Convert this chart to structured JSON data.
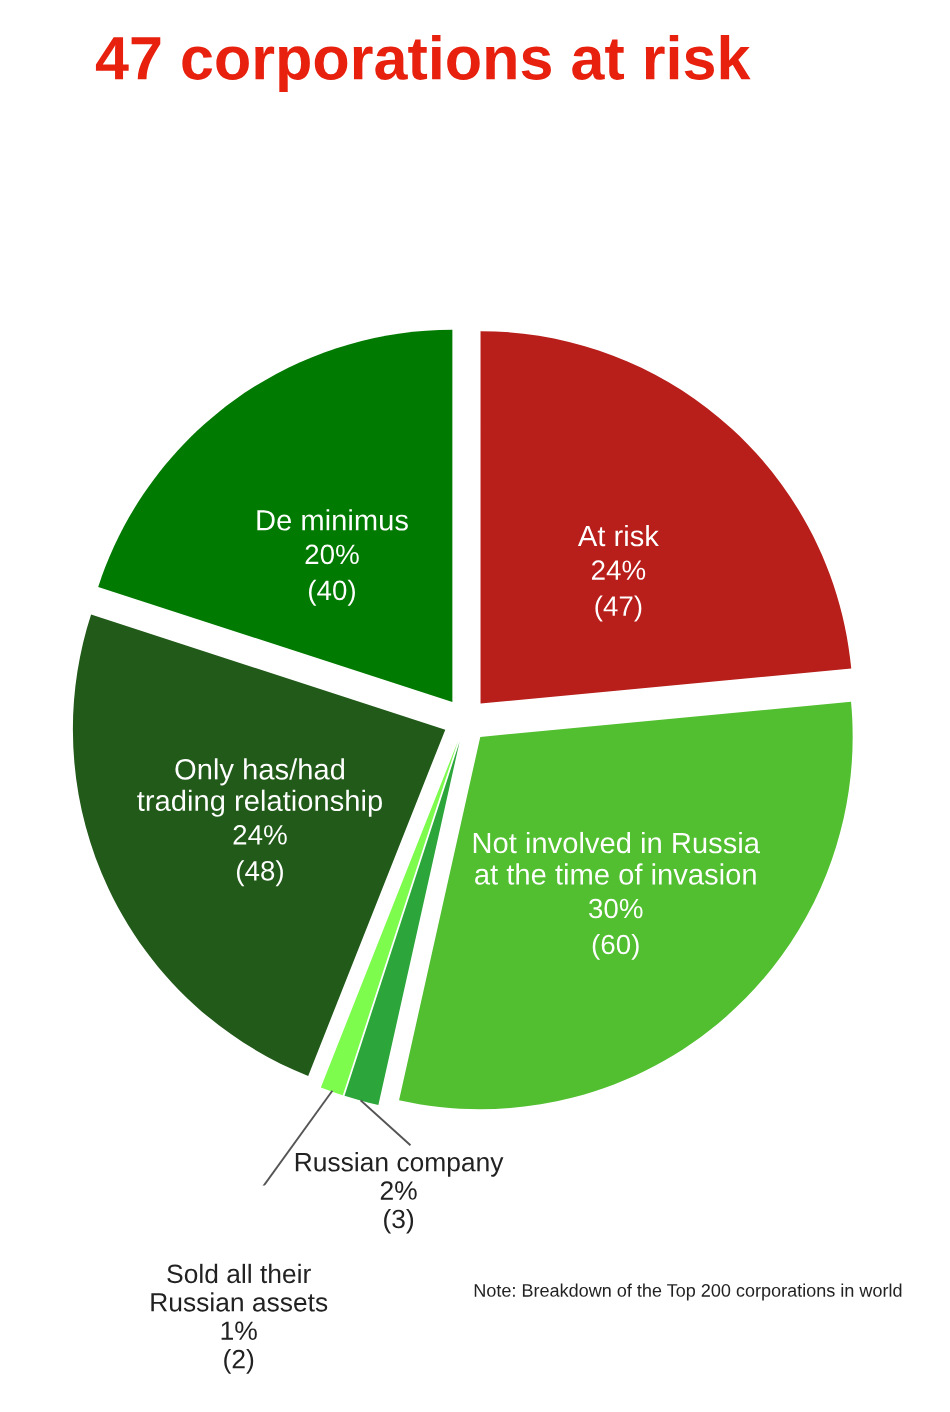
{
  "chart_data": {
    "type": "pie",
    "title": "47 corporations at risk",
    "categories": [
      "At risk",
      "Not involved in Russia\nat the time of invasion",
      "Russian company",
      "Sold all their\nRussian assets",
      "Only has/had\ntrading relationship",
      "De minimus"
    ],
    "values": [
      47,
      60,
      3,
      2,
      48,
      40
    ],
    "value_labels": [
      "24%\n(47)",
      "30%\n(60)",
      "2%\n(3)",
      "1%\n(2)",
      "24%\n(48)",
      "20%\n(40)"
    ],
    "colors": [
      "#b81e1a",
      "#52bf30",
      "#2ca53a",
      "#7dfc4e",
      "#225a1a",
      "#007a00"
    ],
    "annotations": [
      "Note: Breakdown of the Top 200 corporations in world"
    ]
  }
}
